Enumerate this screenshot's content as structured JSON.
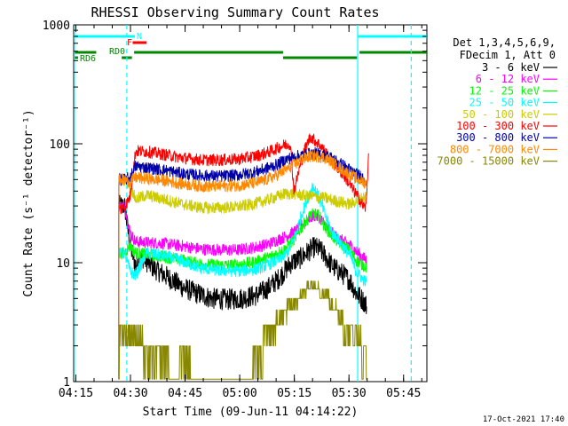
{
  "chart_data": {
    "type": "line",
    "title": "RHESSI Observing Summary Count Rates",
    "xlabel": "Start Time (09-Jun-11 04:14:22)",
    "ylabel": "Count Rate (s⁻¹ detector⁻¹)",
    "x_unit": "minutes after 04:14:22",
    "xlim": [
      0,
      97
    ],
    "ylim": [
      1,
      1000
    ],
    "y_scale": "log",
    "x_ticks": [
      {
        "x": 0.6,
        "label": "04:15"
      },
      {
        "x": 15.6,
        "label": "04:30"
      },
      {
        "x": 30.6,
        "label": "04:45"
      },
      {
        "x": 45.6,
        "label": "05:00"
      },
      {
        "x": 60.6,
        "label": "05:15"
      },
      {
        "x": 75.6,
        "label": "05:30"
      },
      {
        "x": 90.6,
        "label": "05:45"
      }
    ],
    "y_ticks": [
      {
        "y": 1,
        "label": "1"
      },
      {
        "y": 10,
        "label": "10"
      },
      {
        "y": 100,
        "label": "100"
      },
      {
        "y": 1000,
        "label": "1000"
      }
    ],
    "grid": false,
    "legend": {
      "placement": "right",
      "header": [
        "Det 1,3,4,5,6,9,",
        "FDecim 1, Att 0"
      ]
    },
    "series": [
      {
        "name": "3 - 6 keV",
        "color": "#000000",
        "points": [
          [
            12.4,
            30
          ],
          [
            14.0,
            30
          ],
          [
            15.5,
            14
          ],
          [
            17.0,
            9.5
          ],
          [
            19.0,
            11
          ],
          [
            22.0,
            9.0
          ],
          [
            26.0,
            7.5
          ],
          [
            30.0,
            6.2
          ],
          [
            34.0,
            5.5
          ],
          [
            38.0,
            5.0
          ],
          [
            42.0,
            4.9
          ],
          [
            46.0,
            5.0
          ],
          [
            50.0,
            5.3
          ],
          [
            53.0,
            6.0
          ],
          [
            56.0,
            7.2
          ],
          [
            58.0,
            8.5
          ],
          [
            59.5,
            9.8
          ],
          [
            61.0,
            10.5
          ],
          [
            62.5,
            11
          ],
          [
            64.5,
            12.5
          ],
          [
            66.0,
            13.5
          ],
          [
            67.5,
            13
          ],
          [
            69.0,
            11.5
          ],
          [
            70.5,
            9.8
          ],
          [
            72.0,
            8.8
          ],
          [
            74.0,
            8.0
          ],
          [
            76.0,
            7.0
          ],
          [
            77.5,
            5.6
          ],
          [
            79.5,
            4.8
          ],
          [
            80.5,
            4.3
          ]
        ]
      },
      {
        "name": "6 - 12 keV",
        "color": "#ff00ff",
        "points": [
          [
            12.4,
            30
          ],
          [
            14.0,
            30
          ],
          [
            15.5,
            18
          ],
          [
            17.0,
            15
          ],
          [
            20.0,
            14.8
          ],
          [
            25.0,
            14.5
          ],
          [
            30.0,
            13.8
          ],
          [
            35.0,
            13
          ],
          [
            40.0,
            12.8
          ],
          [
            45.0,
            12.8
          ],
          [
            50.0,
            13.5
          ],
          [
            53.0,
            14.2
          ],
          [
            56.0,
            15.5
          ],
          [
            58.0,
            16.5
          ],
          [
            59.5,
            17.5
          ],
          [
            61.0,
            18.5
          ],
          [
            62.5,
            20.5
          ],
          [
            64.5,
            23.5
          ],
          [
            66.0,
            25
          ],
          [
            67.5,
            24
          ],
          [
            69.0,
            21
          ],
          [
            70.5,
            18.5
          ],
          [
            72.0,
            16.5
          ],
          [
            74.0,
            15.2
          ],
          [
            76.0,
            14
          ],
          [
            77.5,
            12.5
          ],
          [
            79.5,
            11
          ],
          [
            80.5,
            10.5
          ]
        ]
      },
      {
        "name": "12 - 25 keV",
        "color": "#00ff00",
        "points": [
          [
            12.4,
            12
          ],
          [
            14.0,
            12
          ],
          [
            15.5,
            14
          ],
          [
            17.0,
            12
          ],
          [
            20.0,
            11.8
          ],
          [
            25.0,
            11.2
          ],
          [
            30.0,
            10.5
          ],
          [
            35.0,
            9.8
          ],
          [
            40.0,
            9.5
          ],
          [
            45.0,
            9.6
          ],
          [
            50.0,
            10.2
          ],
          [
            53.0,
            11
          ],
          [
            56.0,
            12
          ],
          [
            58.0,
            13
          ],
          [
            59.5,
            14.5
          ],
          [
            61.0,
            16.5
          ],
          [
            62.5,
            19.5
          ],
          [
            64.5,
            24
          ],
          [
            66.0,
            26
          ],
          [
            67.5,
            24.5
          ],
          [
            69.0,
            20
          ],
          [
            70.5,
            17.5
          ],
          [
            72.0,
            15.5
          ],
          [
            74.0,
            14
          ],
          [
            76.0,
            12.5
          ],
          [
            77.5,
            10.5
          ],
          [
            79.5,
            9.5
          ],
          [
            80.5,
            9.2
          ]
        ]
      },
      {
        "name": "25 - 50 keV",
        "color": "#00ffff",
        "points": [
          [
            12.4,
            12
          ],
          [
            14.0,
            12
          ],
          [
            15.5,
            8.5
          ],
          [
            17.0,
            7.8
          ],
          [
            20.0,
            12
          ],
          [
            25.0,
            11.5
          ],
          [
            30.0,
            10.2
          ],
          [
            35.0,
            9.0
          ],
          [
            40.0,
            8.6
          ],
          [
            45.0,
            8.5
          ],
          [
            50.0,
            8.8
          ],
          [
            53.0,
            9.5
          ],
          [
            56.0,
            10.5
          ],
          [
            58.0,
            11.5
          ],
          [
            59.5,
            13.5
          ],
          [
            61.0,
            17
          ],
          [
            62.5,
            25
          ],
          [
            64.5,
            36
          ],
          [
            65.5,
            44
          ],
          [
            66.5,
            40
          ],
          [
            68.0,
            31
          ],
          [
            69.5,
            23
          ],
          [
            71.0,
            18
          ],
          [
            72.5,
            16
          ],
          [
            74.0,
            13.5
          ],
          [
            76.0,
            11.5
          ],
          [
            77.5,
            8.5
          ],
          [
            79.5,
            7.2
          ],
          [
            80.5,
            6.8
          ]
        ]
      },
      {
        "name": "50 - 100 keV",
        "color": "#cccc00",
        "points": [
          [
            12.4,
            50
          ],
          [
            14.0,
            50
          ],
          [
            15.5,
            45
          ],
          [
            17.0,
            34
          ],
          [
            20.0,
            37
          ],
          [
            25.0,
            34
          ],
          [
            30.0,
            31
          ],
          [
            35.0,
            29
          ],
          [
            40.0,
            29
          ],
          [
            45.0,
            29.5
          ],
          [
            50.0,
            31.5
          ],
          [
            53.0,
            33.5
          ],
          [
            56.0,
            36
          ],
          [
            58.0,
            38
          ],
          [
            59.5,
            38
          ],
          [
            61.0,
            38
          ],
          [
            62.5,
            37
          ],
          [
            64.5,
            36
          ],
          [
            66.0,
            36
          ],
          [
            67.5,
            35.5
          ],
          [
            69.0,
            35
          ],
          [
            70.5,
            34
          ],
          [
            72.0,
            33
          ],
          [
            74.0,
            32
          ],
          [
            76.0,
            31
          ],
          [
            77.5,
            33
          ],
          [
            79.5,
            35
          ],
          [
            80.5,
            37
          ]
        ]
      },
      {
        "name": "100 - 300 keV",
        "color": "#ff0000",
        "points": [
          [
            12.4,
            28
          ],
          [
            14.0,
            29
          ],
          [
            15.5,
            36
          ],
          [
            17.0,
            87
          ],
          [
            20.0,
            86
          ],
          [
            25.0,
            81
          ],
          [
            30.0,
            76
          ],
          [
            35.0,
            73
          ],
          [
            40.0,
            73
          ],
          [
            45.0,
            74
          ],
          [
            50.0,
            79
          ],
          [
            53.0,
            84
          ],
          [
            56.0,
            92
          ],
          [
            58.0,
            98
          ],
          [
            59.5,
            100
          ],
          [
            60.5,
            40
          ],
          [
            62.0,
            62
          ],
          [
            63.5,
            90
          ],
          [
            65.0,
            115
          ],
          [
            66.0,
            108
          ],
          [
            68.0,
            95
          ],
          [
            69.5,
            82
          ],
          [
            71.0,
            70
          ],
          [
            73.0,
            60
          ],
          [
            75.0,
            50
          ],
          [
            76.5,
            42
          ],
          [
            78.0,
            36
          ],
          [
            79.5,
            30
          ],
          [
            80.3,
            29
          ],
          [
            81.0,
            84
          ]
        ]
      },
      {
        "name": "300 - 800 keV",
        "color": "#0000aa",
        "points": [
          [
            12.4,
            50
          ],
          [
            14.0,
            50
          ],
          [
            15.5,
            52
          ],
          [
            17.0,
            65
          ],
          [
            20.0,
            63
          ],
          [
            25.0,
            60
          ],
          [
            30.0,
            56
          ],
          [
            35.0,
            54
          ],
          [
            40.0,
            53.5
          ],
          [
            45.0,
            54.5
          ],
          [
            50.0,
            58
          ],
          [
            53.0,
            62
          ],
          [
            56.0,
            67
          ],
          [
            58.0,
            73
          ],
          [
            59.5,
            76
          ],
          [
            61.0,
            78
          ],
          [
            62.5,
            80
          ],
          [
            64.5,
            82
          ],
          [
            66.0,
            83
          ],
          [
            67.5,
            82
          ],
          [
            69.0,
            80
          ],
          [
            70.5,
            77
          ],
          [
            72.0,
            72
          ],
          [
            74.0,
            66
          ],
          [
            76.0,
            60
          ],
          [
            77.5,
            56
          ],
          [
            79.5,
            52
          ],
          [
            80.5,
            49
          ]
        ]
      },
      {
        "name": "800 - 7000 keV",
        "color": "#ff8800",
        "points": [
          [
            12.4,
            50
          ],
          [
            14.0,
            50
          ],
          [
            15.5,
            48
          ],
          [
            17.0,
            52
          ],
          [
            20.0,
            51
          ],
          [
            25.0,
            49
          ],
          [
            30.0,
            46
          ],
          [
            35.0,
            44
          ],
          [
            40.0,
            44
          ],
          [
            45.0,
            44.5
          ],
          [
            50.0,
            47
          ],
          [
            53.0,
            50
          ],
          [
            56.0,
            55
          ],
          [
            58.0,
            60
          ],
          [
            59.5,
            64
          ],
          [
            61.0,
            68
          ],
          [
            62.5,
            73
          ],
          [
            64.5,
            78
          ],
          [
            66.0,
            79
          ],
          [
            67.5,
            78
          ],
          [
            69.0,
            76
          ],
          [
            70.5,
            72
          ],
          [
            72.0,
            66
          ],
          [
            74.0,
            60
          ],
          [
            76.0,
            55
          ],
          [
            77.5,
            51
          ],
          [
            79.5,
            48
          ],
          [
            80.5,
            46
          ]
        ]
      },
      {
        "name": "7000 - 15000 keV",
        "color": "#888800",
        "points": [
          [
            12.4,
            1.2
          ],
          [
            12.6,
            3
          ],
          [
            19.0,
            3
          ],
          [
            19.1,
            2
          ],
          [
            26.0,
            2
          ],
          [
            26.1,
            1.2
          ],
          [
            29.0,
            1.2
          ],
          [
            29.1,
            2
          ],
          [
            32.0,
            2
          ],
          [
            32.1,
            1.2
          ],
          [
            49.0,
            1.2
          ],
          [
            49.1,
            2
          ],
          [
            52.0,
            2
          ],
          [
            52.1,
            3
          ],
          [
            55.5,
            3
          ],
          [
            55.6,
            4
          ],
          [
            58.5,
            4
          ],
          [
            58.6,
            5
          ],
          [
            61.5,
            5
          ],
          [
            61.6,
            6
          ],
          [
            64.0,
            6
          ],
          [
            64.1,
            7
          ],
          [
            67.5,
            7
          ],
          [
            67.6,
            6
          ],
          [
            70.0,
            6
          ],
          [
            70.1,
            5
          ],
          [
            72.0,
            5
          ],
          [
            72.1,
            4
          ],
          [
            74.0,
            4
          ],
          [
            74.1,
            3
          ],
          [
            79.0,
            3
          ],
          [
            79.1,
            2
          ],
          [
            80.5,
            2
          ],
          [
            80.6,
            1.2
          ]
        ]
      }
    ],
    "annotations": {
      "vertical_markers": [
        {
          "x": 0.2,
          "style": "solid"
        },
        {
          "x": 14.6,
          "style": "dashed"
        },
        {
          "x": 78.0,
          "style": "solid"
        },
        {
          "x": 92.7,
          "style": "dashed"
        }
      ],
      "flags": [
        {
          "label": "N",
          "color": "#00ffff",
          "segments": [
            [
              0,
              14.6
            ],
            [
              14.6,
              16.8
            ],
            [
              78.0,
              97.0
            ]
          ]
        },
        {
          "label": "F",
          "color": "#ff0000",
          "segments": [
            [
              16.2,
              20.0
            ]
          ]
        },
        {
          "label": "RD0",
          "color": "#008800",
          "segments": [
            [
              0,
              6.2
            ],
            [
              16.6,
              57.5
            ],
            [
              78.5,
              97.0
            ]
          ]
        },
        {
          "label": "RD6",
          "color": "#008800",
          "segments": [
            [
              0,
              1.2
            ],
            [
              13.2,
              16.0
            ],
            [
              57.5,
              77.8
            ]
          ]
        }
      ]
    },
    "footer_date": "17-Oct-2021 17:40"
  }
}
